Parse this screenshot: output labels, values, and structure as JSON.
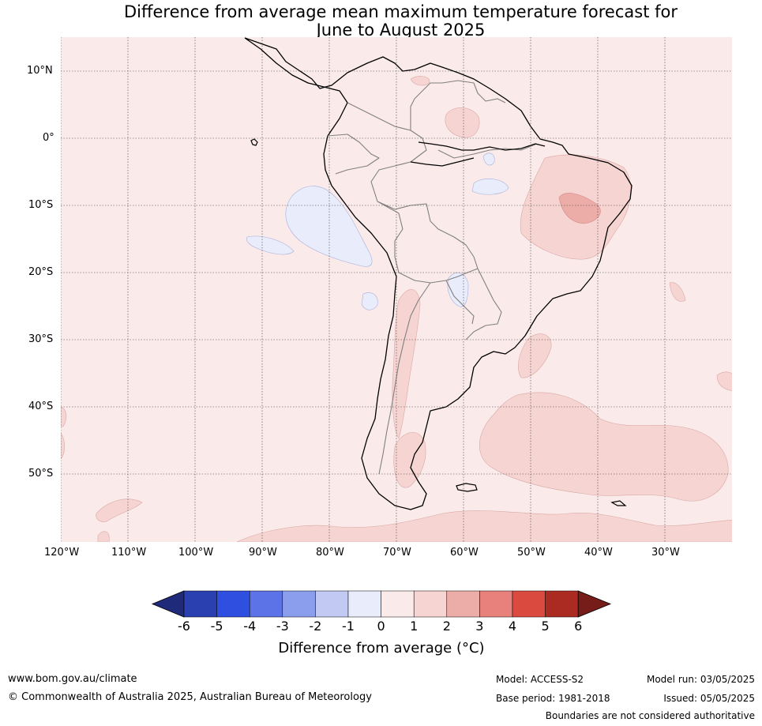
{
  "title_line1": "Difference from average mean maximum temperature forecast for",
  "title_line2": "June to August 2025",
  "lat_labels": [
    "10°N",
    "0°",
    "10°S",
    "20°S",
    "30°S",
    "40°S",
    "50°S"
  ],
  "lon_labels": [
    "120°W",
    "110°W",
    "100°W",
    "90°W",
    "80°W",
    "70°W",
    "60°W",
    "50°W",
    "40°W",
    "30°W"
  ],
  "colorbar": {
    "title": "Difference from average (°C)",
    "ticks": [
      "-6",
      "-5",
      "-4",
      "-3",
      "-2",
      "-1",
      "0",
      "1",
      "2",
      "3",
      "4",
      "5",
      "6"
    ],
    "colors": [
      "#1f2b7a",
      "#2a3fb0",
      "#2f4fe0",
      "#5b73e6",
      "#8b9ded",
      "#c2c9f3",
      "#e9ecfb",
      "#fbeaea",
      "#f5d4d2",
      "#ecaca8",
      "#e8817b",
      "#da4a3e",
      "#ab2b22",
      "#771d19"
    ]
  },
  "map": {
    "ocean_color": "#fbeaea",
    "warm_color": "#f5d4d2",
    "hot_color": "#ecaca8",
    "cool_color": "#e9ecfb"
  },
  "footer": {
    "url": "www.bom.gov.au/climate",
    "copyright": "© Commonwealth of Australia 2025, Australian Bureau of Meteorology",
    "model": "Model: ACCESS-S2",
    "base_period": "Base period: 1981-2018",
    "model_run": "Model run: 03/05/2025",
    "issued": "Issued: 05/05/2025",
    "disclaimer": "Boundaries are not considered authoritative"
  }
}
